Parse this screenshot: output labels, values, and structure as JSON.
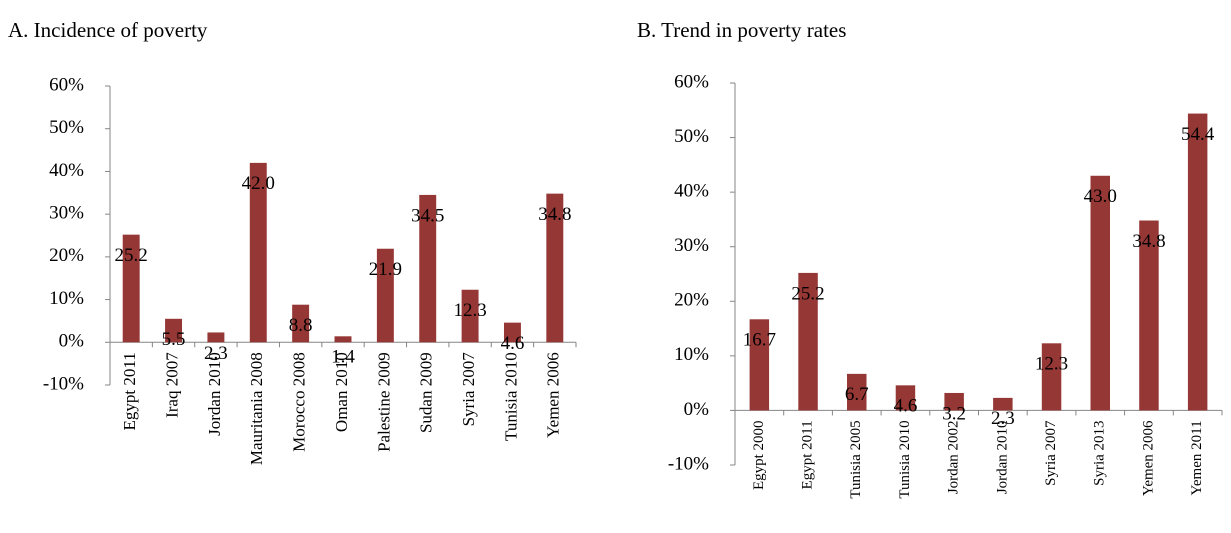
{
  "chart_data": [
    {
      "type": "bar",
      "title": "A. Incidence of poverty",
      "categories": [
        "Egypt 2011",
        "Iraq 2007",
        "Jordan 2010",
        "Mauritania 2008",
        "Morocco 2008",
        "Oman 2010",
        "Palestine 2009",
        "Sudan 2009",
        "Syria 2007",
        "Tunisia 2010",
        "Yemen 2006"
      ],
      "values": [
        25.2,
        5.5,
        2.3,
        42.0,
        8.8,
        1.4,
        21.9,
        34.5,
        12.3,
        4.6,
        34.8
      ],
      "value_labels": [
        "25.2",
        "5.5",
        "2.3",
        "42.0",
        "8.8",
        "1.4",
        "21.9",
        "34.5",
        "12.3",
        "4.6",
        "34.8"
      ],
      "color": "#953735",
      "ylim": [
        -10,
        60
      ],
      "yticks": [
        {
          "value": -10,
          "label": "-10%"
        },
        {
          "value": 0,
          "label": "0%"
        },
        {
          "value": 10,
          "label": "10%"
        },
        {
          "value": 20,
          "label": "20%"
        },
        {
          "value": 30,
          "label": "30%"
        },
        {
          "value": 40,
          "label": "40%"
        },
        {
          "value": 50,
          "label": "50%"
        },
        {
          "value": 60,
          "label": "60%"
        }
      ]
    },
    {
      "type": "bar",
      "title": "B. Trend in poverty rates",
      "categories": [
        "Egypt 2000",
        "Egypt 2011",
        "Tunisia 2005",
        "Tunisia 2010",
        "Jordan 2002",
        "Jordan 2010",
        "Syria 2007",
        "Syria 2013",
        "Yemen 2006",
        "Yemen 2011"
      ],
      "values": [
        16.7,
        25.2,
        6.7,
        4.6,
        3.2,
        2.3,
        12.3,
        43.0,
        34.8,
        54.4
      ],
      "value_labels": [
        "16.7",
        "25.2",
        "6.7",
        "4.6",
        "3.2",
        "2.3",
        "12.3",
        "43.0",
        "34.8",
        "54.4"
      ],
      "color": "#953735",
      "ylim": [
        -10,
        60
      ],
      "yticks": [
        {
          "value": -10,
          "label": "-10%"
        },
        {
          "value": 0,
          "label": "0%"
        },
        {
          "value": 10,
          "label": "10%"
        },
        {
          "value": 20,
          "label": "20%"
        },
        {
          "value": 30,
          "label": "30%"
        },
        {
          "value": 40,
          "label": "40%"
        },
        {
          "value": 50,
          "label": "50%"
        },
        {
          "value": 60,
          "label": "60%"
        }
      ]
    }
  ]
}
